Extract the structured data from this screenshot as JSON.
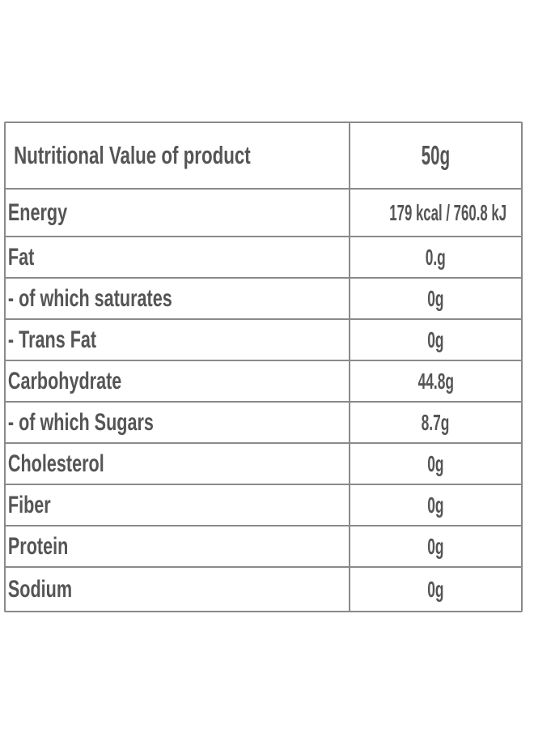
{
  "table": {
    "header": {
      "label": "Nutritional Value of product",
      "value": "50g"
    },
    "rows": [
      {
        "label": "Energy",
        "value": "179 kcal / 760.8 kJ"
      },
      {
        "label": "Fat",
        "value": "0.g"
      },
      {
        "label": "- of which saturates",
        "value": "0g"
      },
      {
        "label": "- Trans Fat",
        "value": "0g"
      },
      {
        "label": "Carbohydrate",
        "value": "44.8g"
      },
      {
        "label": "- of which Sugars",
        "value": "8.7g"
      },
      {
        "label": "Cholesterol",
        "value": "0g"
      },
      {
        "label": " Fiber",
        "value": "0g"
      },
      {
        "label": "Protein",
        "value": "0g"
      },
      {
        "label": "Sodium",
        "value": "0g"
      }
    ]
  },
  "colors": {
    "border": "#8a8a8a",
    "text": "#555555",
    "background": "#ffffff"
  }
}
